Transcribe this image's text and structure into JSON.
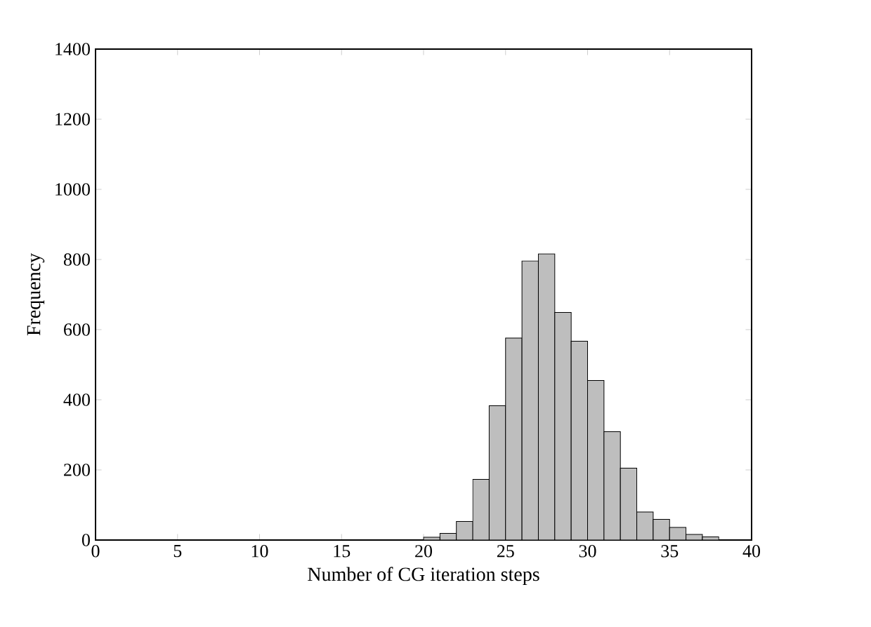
{
  "chart_data": {
    "type": "histogram",
    "xlabel": "Number of CG iteration steps",
    "ylabel": "Frequency",
    "bins": [
      20,
      21,
      22,
      23,
      24,
      25,
      26,
      27,
      28,
      29,
      30,
      31,
      32,
      33,
      34,
      35,
      36,
      37,
      38
    ],
    "values": [
      8,
      19,
      53,
      173,
      383,
      576,
      796,
      816,
      649,
      567,
      455,
      309,
      205,
      80,
      59,
      36,
      16,
      9
    ],
    "color": "#bebebe",
    "xlim": [
      0,
      40
    ],
    "xticks": [
      0,
      5,
      10,
      15,
      20,
      25,
      30,
      35,
      40
    ],
    "ylim": [
      0,
      1400
    ],
    "yticks": [
      0,
      200,
      400,
      600,
      800,
      1000,
      1200,
      1400
    ]
  }
}
